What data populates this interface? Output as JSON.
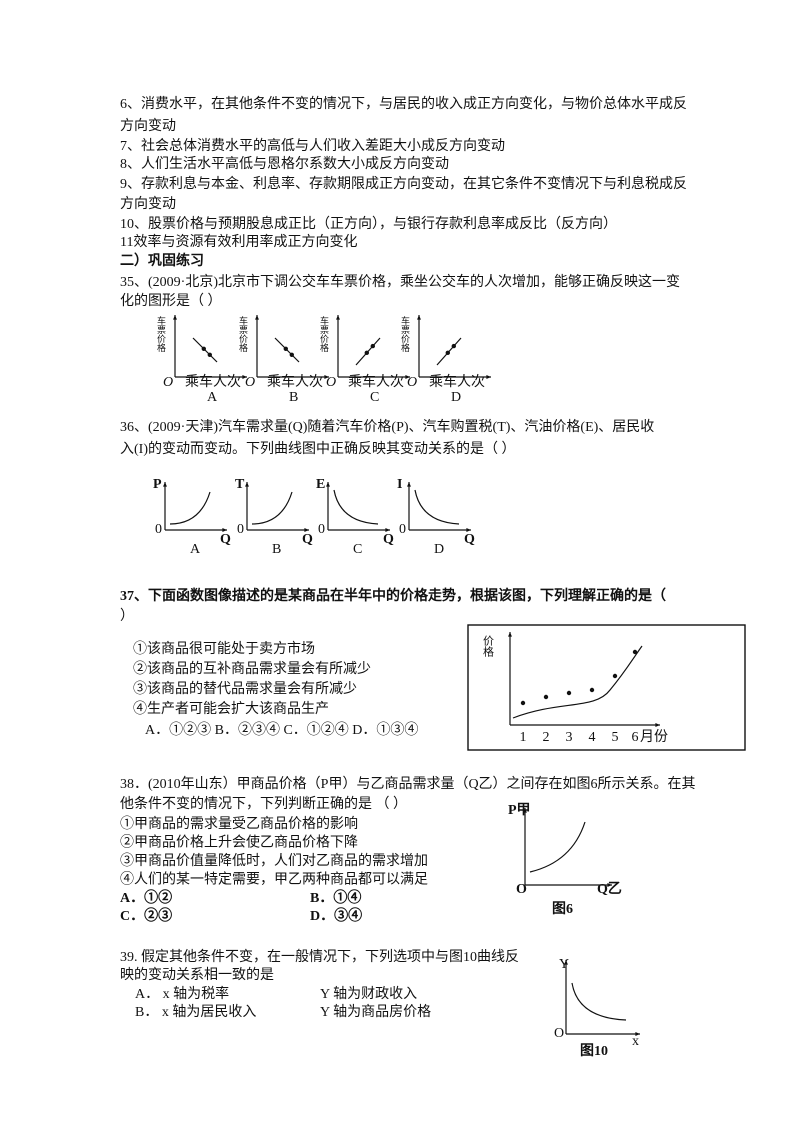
{
  "rules": [
    "6、消费水平，在其他条件不变的情况下，与居民的收入成正方向变化，与物价总体水平成反",
    "方向变动",
    "7、社会总体消费水平的高低与人们收入差距大小成反方向变动",
    "8、人们生活水平高低与恩格尔系数大小成反方向变动",
    "9、存款利息与本金、利息率、存款期限成正方向变动，在其它条件不变情况下与利息税成反",
    "方向变动",
    "10、股票价格与预期股息成正比（正方向），与银行存款利息率成反比（反方向）",
    "11效率与资源有效利用率成正方向变化"
  ],
  "section_title": "二）巩固练习",
  "q35": {
    "stem": [
      "35、(2009·北京)北京市下调公交车车票价格，乘坐公交车的人次增加，能够正确反映这一变",
      "化的图形是（  ）"
    ],
    "figures": [
      {
        "y_label": "车票价格",
        "origin": "O",
        "x_label": "乘车人次",
        "caption": "A"
      },
      {
        "y_label": "车票价格",
        "origin": "O",
        "x_label": "乘车人次",
        "caption": "B"
      },
      {
        "y_label": "车票价格",
        "origin": "O",
        "x_label": "乘车人次",
        "caption": "C"
      },
      {
        "y_label": "车票价格",
        "origin": "O",
        "x_label": "乘车人次",
        "caption": "D"
      }
    ]
  },
  "q36": {
    "stem": [
      "36、(2009·天津)汽车需求量(Q)随着汽车价格(P)、汽车购置税(T)、汽油价格(E)、居民收",
      "入(I)的变动而变动。下列曲线图中正确反映其变动关系的是（   ）"
    ],
    "figures": [
      {
        "y_label": "P",
        "origin": "0",
        "x_label": "Q",
        "caption": "A"
      },
      {
        "y_label": "T",
        "origin": "0",
        "x_label": "Q",
        "caption": "B"
      },
      {
        "y_label": "E",
        "origin": "0",
        "x_label": "Q",
        "caption": "C"
      },
      {
        "y_label": "I",
        "origin": "0",
        "x_label": "Q",
        "caption": "D"
      }
    ]
  },
  "q37": {
    "stem": [
      "37、下面函数图像描述的是某商品在半年中的价格走势，根据该图，下列理解正确的是（",
      "）"
    ],
    "options": [
      "①该商品很可能处于卖方市场",
      "②该商品的互补商品需求量会有所减少",
      "③该商品的替代品需求量会有所减少",
      "④生产者可能会扩大该商品生产"
    ],
    "answers": "A．①②③    B．②③④   C．①②④  D．①③④",
    "chart": {
      "y_label": "价格",
      "x_ticks": [
        "1",
        "2",
        "3",
        "4",
        "5",
        "6"
      ],
      "x_label": "月份"
    }
  },
  "q38": {
    "stem": [
      "38．(2010年山东）甲商品价格（P甲）与乙商品需求量（Q乙）之间存在如图6所示关系。在其",
      "他条件不变的情况下，下列判断正确的是                （   ）"
    ],
    "options": [
      "①甲商品的需求量受乙商品价格的影响",
      "②甲商品价格上升会使乙商品价格下降",
      "③甲商品价值量降低时，人们对乙商品的需求增加",
      "④人们的某一特定需要，甲乙两种商品都可以满足"
    ],
    "answers": [
      [
        "A．①②",
        "B．①④"
      ],
      [
        "C．②③",
        "D．③④"
      ]
    ],
    "figure": {
      "y_label": "P甲",
      "origin": "O",
      "x_label": "Q乙",
      "caption": "图6"
    }
  },
  "q39": {
    "stem": [
      "39. 假定其他条件不变，在一般情况下，下列选项中与图10曲线反",
      "映的变动关系相一致的是"
    ],
    "options": [
      {
        "x": "A． x 轴为税率",
        "y": "Y 轴为财政收入"
      },
      {
        "x": "B． x 轴为居民收入",
        "y": "Y 轴为商品房价格"
      }
    ],
    "figure": {
      "y_label": "Y",
      "origin": "O",
      "x_label": "x",
      "caption": "图10"
    }
  }
}
